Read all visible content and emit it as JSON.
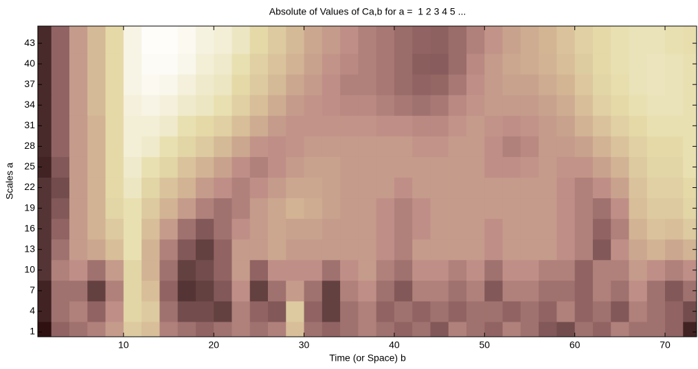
{
  "chart_data": {
    "type": "heatmap",
    "title": "Absolute of Values of Ca,b for a =  1 2 3 4 5 ...",
    "xlabel": "Time (or Space) b",
    "ylabel": "Scales a",
    "x": [
      1,
      3,
      5,
      7,
      9,
      11,
      13,
      15,
      17,
      19,
      21,
      23,
      25,
      27,
      29,
      31,
      33,
      35,
      37,
      39,
      41,
      43,
      45,
      47,
      49,
      51,
      53,
      55,
      57,
      59,
      61,
      63,
      65,
      67,
      69,
      71,
      73
    ],
    "y": [
      1,
      4,
      7,
      10,
      13,
      16,
      19,
      22,
      25,
      28,
      31,
      34,
      37,
      40,
      43
    ],
    "values": [
      [
        5,
        35,
        40,
        45,
        55,
        75,
        70,
        45,
        40,
        35,
        40,
        45,
        40,
        45,
        70,
        40,
        35,
        40,
        45,
        40,
        35,
        40,
        30,
        45,
        40,
        35,
        45,
        40,
        30,
        25,
        40,
        35,
        45,
        40,
        40,
        35,
        10
      ],
      [
        10,
        40,
        45,
        35,
        50,
        80,
        75,
        40,
        25,
        25,
        20,
        45,
        35,
        30,
        75,
        35,
        20,
        40,
        45,
        35,
        40,
        35,
        40,
        35,
        40,
        40,
        35,
        40,
        35,
        45,
        35,
        40,
        30,
        45,
        40,
        35,
        25
      ],
      [
        10,
        40,
        40,
        20,
        45,
        80,
        70,
        35,
        15,
        20,
        30,
        50,
        20,
        40,
        55,
        40,
        20,
        45,
        50,
        40,
        30,
        45,
        45,
        40,
        45,
        30,
        45,
        45,
        40,
        40,
        35,
        45,
        40,
        50,
        40,
        30,
        40
      ],
      [
        15,
        45,
        50,
        40,
        55,
        80,
        65,
        40,
        20,
        25,
        35,
        55,
        35,
        50,
        50,
        50,
        40,
        50,
        55,
        45,
        40,
        50,
        50,
        45,
        50,
        40,
        50,
        50,
        45,
        45,
        35,
        45,
        45,
        55,
        50,
        45,
        50
      ],
      [
        15,
        40,
        55,
        60,
        70,
        85,
        65,
        45,
        30,
        20,
        35,
        55,
        55,
        60,
        55,
        55,
        55,
        55,
        55,
        50,
        45,
        55,
        55,
        55,
        55,
        50,
        55,
        55,
        55,
        50,
        45,
        30,
        50,
        60,
        65,
        60,
        65
      ],
      [
        15,
        35,
        55,
        65,
        75,
        85,
        70,
        55,
        40,
        30,
        40,
        50,
        55,
        60,
        58,
        58,
        55,
        55,
        55,
        50,
        45,
        50,
        55,
        55,
        55,
        50,
        55,
        55,
        55,
        50,
        45,
        35,
        45,
        65,
        72,
        70,
        75
      ],
      [
        15,
        30,
        55,
        65,
        80,
        85,
        75,
        65,
        55,
        45,
        40,
        45,
        55,
        60,
        65,
        62,
        58,
        55,
        55,
        50,
        45,
        50,
        55,
        55,
        55,
        55,
        55,
        55,
        55,
        50,
        45,
        40,
        50,
        70,
        75,
        75,
        80
      ],
      [
        15,
        25,
        55,
        65,
        82,
        88,
        80,
        72,
        65,
        55,
        50,
        45,
        50,
        55,
        60,
        60,
        58,
        55,
        55,
        55,
        50,
        55,
        55,
        55,
        55,
        55,
        55,
        55,
        55,
        50,
        45,
        50,
        58,
        72,
        78,
        78,
        82
      ],
      [
        10,
        30,
        55,
        65,
        82,
        90,
        85,
        80,
        72,
        65,
        58,
        50,
        45,
        50,
        55,
        58,
        58,
        55,
        55,
        55,
        55,
        55,
        55,
        55,
        55,
        50,
        50,
        52,
        55,
        52,
        52,
        58,
        65,
        75,
        80,
        80,
        85
      ],
      [
        12,
        35,
        55,
        65,
        82,
        92,
        90,
        85,
        80,
        75,
        68,
        60,
        52,
        50,
        52,
        55,
        55,
        55,
        55,
        55,
        55,
        52,
        52,
        55,
        55,
        50,
        45,
        48,
        55,
        55,
        58,
        65,
        72,
        78,
        82,
        82,
        85
      ],
      [
        12,
        35,
        55,
        65,
        82,
        92,
        92,
        90,
        85,
        82,
        78,
        70,
        62,
        55,
        52,
        52,
        52,
        52,
        52,
        50,
        50,
        48,
        48,
        52,
        55,
        52,
        50,
        52,
        55,
        58,
        65,
        72,
        78,
        82,
        85,
        85,
        85
      ],
      [
        12,
        35,
        55,
        68,
        82,
        93,
        95,
        93,
        90,
        88,
        85,
        78,
        70,
        62,
        55,
        52,
        50,
        48,
        48,
        45,
        42,
        40,
        42,
        48,
        52,
        55,
        55,
        55,
        58,
        62,
        70,
        78,
        82,
        85,
        86,
        86,
        85
      ],
      [
        12,
        35,
        55,
        68,
        82,
        95,
        97,
        96,
        93,
        90,
        88,
        82,
        75,
        68,
        60,
        55,
        50,
        45,
        45,
        42,
        38,
        35,
        36,
        42,
        50,
        55,
        58,
        58,
        62,
        66,
        74,
        80,
        84,
        86,
        87,
        86,
        85
      ],
      [
        12,
        35,
        55,
        68,
        82,
        95,
        98,
        98,
        96,
        92,
        90,
        85,
        78,
        72,
        65,
        58,
        52,
        48,
        45,
        42,
        38,
        33,
        32,
        38,
        48,
        55,
        60,
        62,
        65,
        70,
        76,
        82,
        85,
        86,
        87,
        86,
        85
      ],
      [
        12,
        35,
        55,
        68,
        82,
        95,
        99,
        99,
        97,
        94,
        92,
        88,
        82,
        75,
        68,
        60,
        55,
        50,
        45,
        42,
        38,
        35,
        34,
        38,
        45,
        52,
        58,
        62,
        66,
        72,
        78,
        82,
        85,
        86,
        86,
        85,
        84
      ]
    ],
    "clim": [
      0,
      100
    ],
    "colormap": [
      "#1e0000",
      "#5a3a3a",
      "#8c5f5f",
      "#bf8f87",
      "#d4b795",
      "#e6dcaa",
      "#ffffff"
    ],
    "xlim": [
      0.5,
      73.5
    ],
    "ylim": [
      0.3,
      45.5
    ],
    "xticks": [
      10,
      20,
      30,
      40,
      50,
      60,
      70
    ],
    "yticks": [
      1,
      4,
      7,
      10,
      13,
      16,
      19,
      22,
      25,
      28,
      31,
      34,
      37,
      40,
      43
    ]
  }
}
